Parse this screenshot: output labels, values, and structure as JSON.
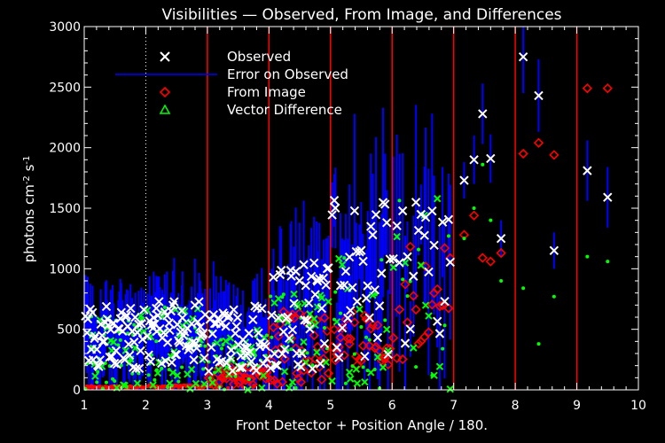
{
  "chart_data": {
    "type": "scatter",
    "title": "Visibilities — Observed, From Image, and Differences",
    "xlabel": "Front Detector + Position Angle / 180.",
    "ylabel_parts": [
      "photons cm",
      "-2",
      " s",
      "-1"
    ],
    "xlim": [
      1,
      10
    ],
    "ylim": [
      0,
      3000
    ],
    "x_ticks": [
      1,
      2,
      3,
      4,
      5,
      6,
      7,
      8,
      9,
      10
    ],
    "y_ticks": [
      0,
      500,
      1000,
      1500,
      2000,
      2500,
      3000
    ],
    "dotted_vline": 2,
    "detector_boundaries": [
      3,
      4,
      5,
      6,
      7,
      8,
      9
    ],
    "legend": [
      {
        "key": "observed",
        "label": "Observed",
        "symbol": "x",
        "color": "#ffffff"
      },
      {
        "key": "error",
        "label": "Error on Observed",
        "symbol": "line",
        "color": "#0000ff"
      },
      {
        "key": "image",
        "label": "From Image",
        "symbol": "diamond",
        "color": "#ff0000"
      },
      {
        "key": "diff",
        "label": "Vector Difference",
        "symbol": "triangle",
        "color": "#00ff00"
      }
    ],
    "colors": {
      "background": "#000000",
      "axes": "#ffffff",
      "boundaries": "#ff0000",
      "observed": "#ffffff",
      "error": "#0000ff",
      "image": "#ff0000",
      "diff": "#00ff00"
    },
    "sparse_points": [
      {
        "x": 7.17,
        "obs": 1730,
        "err": 150,
        "img": 1280,
        "diff": 1250
      },
      {
        "x": 7.33,
        "obs": 1900,
        "err": 200,
        "img": 1440,
        "diff": 1500
      },
      {
        "x": 7.47,
        "obs": 2280,
        "err": 250,
        "img": 1090,
        "diff": 1860
      },
      {
        "x": 7.6,
        "obs": 1910,
        "err": 200,
        "img": 1060,
        "diff": 1400
      },
      {
        "x": 7.77,
        "obs": 1250,
        "err": 150,
        "img": 1130,
        "diff": 900
      },
      {
        "x": 8.13,
        "obs": 2750,
        "err": 300,
        "img": 1950,
        "diff": 840
      },
      {
        "x": 8.38,
        "obs": 2430,
        "err": 300,
        "img": 2040,
        "diff": 380
      },
      {
        "x": 8.63,
        "obs": 1150,
        "err": 150,
        "img": 1940,
        "diff": 770
      },
      {
        "x": 9.17,
        "obs": 1810,
        "err": 250,
        "img": 2490,
        "diff": 1100
      },
      {
        "x": 9.5,
        "obs": 1590,
        "err": 250,
        "img": 2490,
        "diff": 1060
      }
    ],
    "dense_regions": [
      {
        "from": 1.0,
        "to": 2.0,
        "n": 55,
        "obs": [
          150,
          700
        ],
        "err": [
          150,
          350
        ],
        "img": [
          0,
          20
        ],
        "diff": [
          0,
          650
        ]
      },
      {
        "from": 2.0,
        "to": 3.0,
        "n": 55,
        "obs": [
          200,
          750
        ],
        "err": [
          150,
          400
        ],
        "img": [
          0,
          25
        ],
        "diff": [
          0,
          700
        ]
      },
      {
        "from": 3.0,
        "to": 4.0,
        "n": 50,
        "obs": [
          150,
          700
        ],
        "err": [
          150,
          450
        ],
        "img": [
          0,
          200
        ],
        "diff": [
          0,
          500
        ]
      },
      {
        "from": 4.0,
        "to": 5.0,
        "n": 45,
        "obs": [
          150,
          1050
        ],
        "err": [
          150,
          550
        ],
        "img": [
          50,
          650
        ],
        "diff": [
          0,
          800
        ]
      },
      {
        "from": 5.0,
        "to": 6.0,
        "n": 35,
        "obs": [
          250,
          1600
        ],
        "err": [
          200,
          800
        ],
        "img": [
          200,
          650
        ],
        "diff": [
          0,
          1150
        ]
      },
      {
        "from": 6.0,
        "to": 7.0,
        "n": 22,
        "obs": [
          280,
          1550
        ],
        "err": [
          200,
          900
        ],
        "img": [
          250,
          1200
        ],
        "diff": [
          0,
          1700
        ]
      }
    ]
  }
}
